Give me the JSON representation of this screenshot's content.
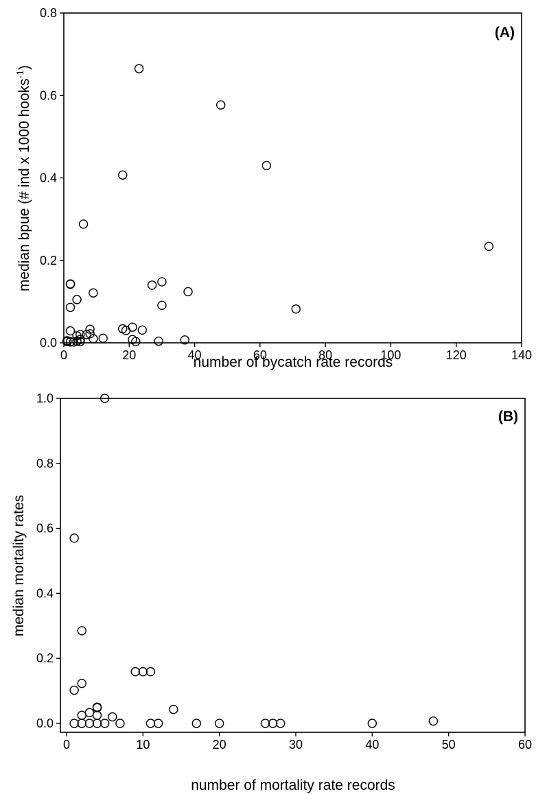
{
  "chart_data": [
    {
      "type": "scatter",
      "panel_label": "(A)",
      "xlabel": "number of bycatch rate records",
      "ylabel_main": "median bpue (# ind x 1000 hooks",
      "ylabel_sup": "-1",
      "ylabel_end": ")",
      "xlim": [
        0,
        140
      ],
      "ylim": [
        0,
        0.8
      ],
      "xticks": [
        "0",
        "20",
        "40",
        "60",
        "80",
        "100",
        "120",
        "140"
      ],
      "yticks": [
        "0.0",
        "0.2",
        "0.4",
        "0.6",
        "0.8"
      ],
      "points": [
        [
          23,
          0.665
        ],
        [
          48,
          0.577
        ],
        [
          62,
          0.43
        ],
        [
          18,
          0.407
        ],
        [
          6,
          0.288
        ],
        [
          130,
          0.234
        ],
        [
          2,
          0.143
        ],
        [
          2,
          0.142
        ],
        [
          30,
          0.148
        ],
        [
          27,
          0.14
        ],
        [
          38,
          0.124
        ],
        [
          9,
          0.121
        ],
        [
          4,
          0.105
        ],
        [
          2,
          0.086
        ],
        [
          30,
          0.091
        ],
        [
          71,
          0.082
        ],
        [
          21,
          0.038
        ],
        [
          18,
          0.034
        ],
        [
          19,
          0.03
        ],
        [
          24,
          0.031
        ],
        [
          8,
          0.033
        ],
        [
          2,
          0.029
        ],
        [
          7,
          0.02
        ],
        [
          8,
          0.022
        ],
        [
          5,
          0.02
        ],
        [
          4,
          0.017
        ],
        [
          12,
          0.011
        ],
        [
          9,
          0.01
        ],
        [
          21,
          0.008
        ],
        [
          5,
          0.008
        ],
        [
          37,
          0.007
        ],
        [
          1,
          0.005
        ],
        [
          1,
          0.003
        ],
        [
          2,
          0.003
        ],
        [
          3,
          0.002
        ],
        [
          5,
          0.003
        ],
        [
          22,
          0.003
        ],
        [
          29,
          0.004
        ],
        [
          4,
          0.004
        ],
        [
          2,
          0.002
        ]
      ]
    },
    {
      "type": "scatter",
      "panel_label": "(B)",
      "xlabel": "number of mortality rate records",
      "ylabel": "median mortality rates",
      "xlim": [
        0,
        60
      ],
      "ylim": [
        0,
        1.0
      ],
      "xticks": [
        "0",
        "10",
        "20",
        "30",
        "40",
        "50",
        "60"
      ],
      "yticks": [
        "0.0",
        "0.2",
        "0.4",
        "0.6",
        "0.8",
        "1.0"
      ],
      "points": [
        [
          5,
          1.0
        ],
        [
          1,
          0.57
        ],
        [
          2,
          0.285
        ],
        [
          2,
          0.123
        ],
        [
          1,
          0.102
        ],
        [
          9,
          0.159
        ],
        [
          10,
          0.159
        ],
        [
          11,
          0.159
        ],
        [
          4,
          0.05
        ],
        [
          4,
          0.048
        ],
        [
          14,
          0.043
        ],
        [
          3,
          0.033
        ],
        [
          2,
          0.025
        ],
        [
          4,
          0.025
        ],
        [
          6,
          0.02
        ],
        [
          48,
          0.007
        ],
        [
          1,
          0.0
        ],
        [
          2,
          0.0
        ],
        [
          3,
          0.0
        ],
        [
          4,
          0.0
        ],
        [
          5,
          0.0
        ],
        [
          7,
          0.0
        ],
        [
          11,
          0.0
        ],
        [
          12,
          0.0
        ],
        [
          17,
          0.0
        ],
        [
          20,
          0.0
        ],
        [
          26,
          0.0
        ],
        [
          27,
          0.0
        ],
        [
          28,
          0.0
        ],
        [
          40,
          0.0
        ]
      ]
    }
  ]
}
